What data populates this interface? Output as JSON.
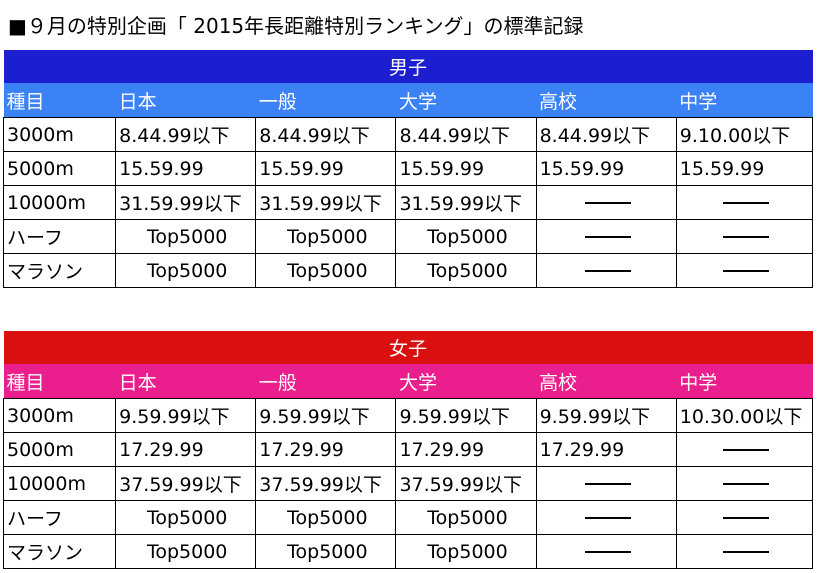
{
  "title": "■９月の特別企画「 2015年長距離特別ランキング」の標準記録",
  "columns": [
    "種目",
    "日本",
    "一般",
    "大学",
    "高校",
    "中学"
  ],
  "sections": [
    {
      "gender": "男子",
      "header_color": "#1c1fd0",
      "subheader_color": "#3a82f6",
      "rows": [
        {
          "event": "3000m",
          "values": [
            "8.44.99以下",
            "8.44.99以下",
            "8.44.99以下",
            "8.44.99以下",
            "9.10.00以下"
          ]
        },
        {
          "event": "5000m",
          "values": [
            "15.59.99",
            "15.59.99",
            "15.59.99",
            "15.59.99",
            "15.59.99"
          ]
        },
        {
          "event": "10000m",
          "values": [
            "31.59.99以下",
            "31.59.99以下",
            "31.59.99以下",
            "",
            ""
          ]
        },
        {
          "event": "ハーフ",
          "values": [
            "Top5000",
            "Top5000",
            "Top5000",
            "",
            ""
          ]
        },
        {
          "event": "マラソン",
          "values": [
            "Top5000",
            "Top5000",
            "Top5000",
            "",
            ""
          ]
        }
      ]
    },
    {
      "gender": "女子",
      "header_color": "#d90f10",
      "subheader_color": "#ea1e8c",
      "rows": [
        {
          "event": "3000m",
          "values": [
            "9.59.99以下",
            "9.59.99以下",
            "9.59.99以下",
            "9.59.99以下",
            "10.30.00以下"
          ]
        },
        {
          "event": "5000m",
          "values": [
            "17.29.99",
            "17.29.99",
            "17.29.99",
            "17.29.99",
            ""
          ]
        },
        {
          "event": "10000m",
          "values": [
            "37.59.99以下",
            "37.59.99以下",
            "37.59.99以下",
            "",
            ""
          ]
        },
        {
          "event": "ハーフ",
          "values": [
            "Top5000",
            "Top5000",
            "Top5000",
            "",
            ""
          ]
        },
        {
          "event": "マラソン",
          "values": [
            "Top5000",
            "Top5000",
            "Top5000",
            "",
            ""
          ]
        }
      ]
    }
  ]
}
